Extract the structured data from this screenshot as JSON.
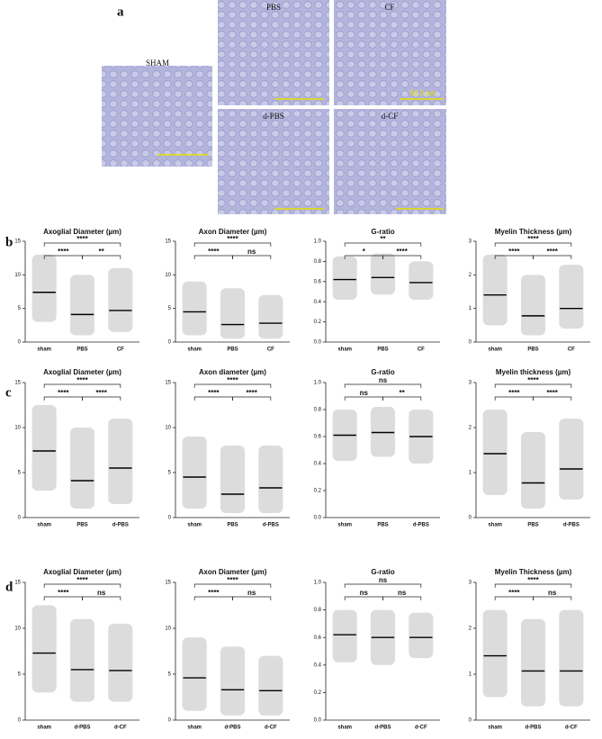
{
  "panel_labels": [
    "a",
    "b",
    "c",
    "d"
  ],
  "micrographs": {
    "images": [
      {
        "label": "SHAM"
      },
      {
        "label": "PBS"
      },
      {
        "label": "CF"
      },
      {
        "label": "d-PBS"
      },
      {
        "label": "d-CF"
      }
    ],
    "scale_bar": "60.0 µm"
  },
  "chart_data": [
    {
      "type": "dot",
      "title": "Axoglial Diameter (µm)",
      "categories": [
        "sham",
        "PBS",
        "CF"
      ],
      "means": [
        7.4,
        4.1,
        4.7
      ],
      "ranges": [
        [
          3,
          13
        ],
        [
          1,
          10
        ],
        [
          1.5,
          11
        ]
      ],
      "ylim": [
        0,
        15
      ],
      "yticks": [
        0,
        5,
        10,
        15
      ],
      "brackets": [
        {
          "between": [
            "sham",
            "PBS"
          ],
          "label": "****"
        },
        {
          "between": [
            "PBS",
            "CF"
          ],
          "label": "**"
        },
        {
          "between": [
            "sham",
            "CF"
          ],
          "label": "****"
        }
      ]
    },
    {
      "type": "dot",
      "title": "Axon Diameter (µm)",
      "categories": [
        "sham",
        "PBS",
        "CF"
      ],
      "means": [
        4.5,
        2.6,
        2.8
      ],
      "ranges": [
        [
          1,
          9
        ],
        [
          0.5,
          8
        ],
        [
          0.5,
          7
        ]
      ],
      "ylim": [
        0,
        15
      ],
      "yticks": [
        0,
        5,
        10,
        15
      ],
      "brackets": [
        {
          "between": [
            "sham",
            "PBS"
          ],
          "label": "****"
        },
        {
          "between": [
            "PBS",
            "CF"
          ],
          "label": "ns"
        },
        {
          "between": [
            "sham",
            "CF"
          ],
          "label": "****"
        }
      ]
    },
    {
      "type": "dot",
      "title": "G-ratio",
      "categories": [
        "sham",
        "PBS",
        "CF"
      ],
      "means": [
        0.62,
        0.64,
        0.59
      ],
      "ranges": [
        [
          0.42,
          0.85
        ],
        [
          0.47,
          0.88
        ],
        [
          0.42,
          0.8
        ]
      ],
      "ylim": [
        0,
        1
      ],
      "yticks": [
        {
          "value": 0,
          "label": "0.0"
        },
        {
          "value": 0.2,
          "label": "0.2"
        },
        {
          "value": 0.4,
          "label": "0.4"
        },
        {
          "value": 0.6,
          "label": "0.6"
        },
        {
          "value": 0.8,
          "label": "0.8"
        },
        {
          "value": 1,
          "label": "1.0"
        }
      ],
      "brackets": [
        {
          "between": [
            "sham",
            "PBS"
          ],
          "label": "*"
        },
        {
          "between": [
            "PBS",
            "CF"
          ],
          "label": "****"
        },
        {
          "between": [
            "sham",
            "CF"
          ],
          "label": "**"
        }
      ]
    },
    {
      "type": "dot",
      "title": "Myelin Thickness (µm)",
      "categories": [
        "sham",
        "PBS",
        "CF"
      ],
      "means": [
        1.4,
        0.78,
        1.0
      ],
      "ranges": [
        [
          0.5,
          2.6
        ],
        [
          0.2,
          2.0
        ],
        [
          0.4,
          2.3
        ]
      ],
      "ylim": [
        0,
        3
      ],
      "yticks": [
        0,
        1,
        2,
        3
      ],
      "brackets": [
        {
          "between": [
            "sham",
            "PBS"
          ],
          "label": "****"
        },
        {
          "between": [
            "PBS",
            "CF"
          ],
          "label": "****"
        },
        {
          "between": [
            "sham",
            "CF"
          ],
          "label": "****"
        }
      ]
    },
    {
      "type": "dot",
      "title": "Axoglial Diameter (µm)",
      "categories": [
        "sham",
        "PBS",
        "d-PBS"
      ],
      "means": [
        7.4,
        4.1,
        5.5
      ],
      "ranges": [
        [
          3,
          12.5
        ],
        [
          1,
          10
        ],
        [
          1.5,
          11
        ]
      ],
      "ylim": [
        0,
        15
      ],
      "yticks": [
        0,
        5,
        10,
        15
      ],
      "brackets": [
        {
          "between": [
            "sham",
            "PBS"
          ],
          "label": "****"
        },
        {
          "between": [
            "PBS",
            "d-PBS"
          ],
          "label": "****"
        },
        {
          "between": [
            "sham",
            "d-PBS"
          ],
          "label": "****"
        }
      ]
    },
    {
      "type": "dot",
      "title": "Axon diameter (µm)",
      "categories": [
        "sham",
        "PBS",
        "d-PBS"
      ],
      "means": [
        4.5,
        2.6,
        3.3
      ],
      "ranges": [
        [
          1,
          9
        ],
        [
          0.5,
          8
        ],
        [
          0.5,
          8
        ]
      ],
      "ylim": [
        0,
        15
      ],
      "yticks": [
        0,
        5,
        10,
        15
      ],
      "brackets": [
        {
          "between": [
            "sham",
            "PBS"
          ],
          "label": "****"
        },
        {
          "between": [
            "PBS",
            "d-PBS"
          ],
          "label": "****"
        },
        {
          "between": [
            "sham",
            "d-PBS"
          ],
          "label": "****"
        }
      ]
    },
    {
      "type": "dot",
      "title": "G-ratio",
      "categories": [
        "sham",
        "PBS",
        "d-PBS"
      ],
      "means": [
        0.61,
        0.63,
        0.6
      ],
      "ranges": [
        [
          0.42,
          0.8
        ],
        [
          0.45,
          0.82
        ],
        [
          0.4,
          0.8
        ]
      ],
      "ylim": [
        0,
        1
      ],
      "yticks": [
        {
          "value": 0,
          "label": "0.0"
        },
        {
          "value": 0.2,
          "label": "0.2"
        },
        {
          "value": 0.4,
          "label": "0.4"
        },
        {
          "value": 0.6,
          "label": "0.6"
        },
        {
          "value": 0.8,
          "label": "0.8"
        },
        {
          "value": 1,
          "label": "1.0"
        }
      ],
      "brackets": [
        {
          "between": [
            "sham",
            "PBS"
          ],
          "label": "ns"
        },
        {
          "between": [
            "PBS",
            "d-PBS"
          ],
          "label": "**"
        },
        {
          "between": [
            "sham",
            "d-PBS"
          ],
          "label": "ns"
        }
      ]
    },
    {
      "type": "dot",
      "title": "Myelin thickness (µm)",
      "categories": [
        "sham",
        "PBS",
        "d-PBS"
      ],
      "means": [
        1.42,
        0.77,
        1.08
      ],
      "ranges": [
        [
          0.5,
          2.4
        ],
        [
          0.2,
          1.9
        ],
        [
          0.4,
          2.2
        ]
      ],
      "ylim": [
        0,
        3
      ],
      "yticks": [
        0,
        1,
        2,
        3
      ],
      "brackets": [
        {
          "between": [
            "sham",
            "PBS"
          ],
          "label": "****"
        },
        {
          "between": [
            "PBS",
            "d-PBS"
          ],
          "label": "****"
        },
        {
          "between": [
            "sham",
            "d-PBS"
          ],
          "label": "****"
        }
      ]
    },
    {
      "type": "dot",
      "title": "Axoglial Diameter (µm)",
      "categories": [
        "sham",
        "d-PBS",
        "d-CF"
      ],
      "means": [
        7.3,
        5.5,
        5.4
      ],
      "ranges": [
        [
          3,
          12.5
        ],
        [
          2,
          11
        ],
        [
          2,
          10.5
        ]
      ],
      "ylim": [
        0,
        15
      ],
      "yticks": [
        0,
        5,
        10,
        15
      ],
      "brackets": [
        {
          "between": [
            "sham",
            "d-PBS"
          ],
          "label": "****"
        },
        {
          "between": [
            "d-PBS",
            "d-CF"
          ],
          "label": "ns"
        },
        {
          "between": [
            "sham",
            "d-CF"
          ],
          "label": "****"
        }
      ]
    },
    {
      "type": "dot",
      "title": "Axon Diameter (µm)",
      "categories": [
        "sham",
        "d-PBS",
        "d-CF"
      ],
      "means": [
        4.6,
        3.3,
        3.2
      ],
      "ranges": [
        [
          1,
          9
        ],
        [
          0.5,
          8
        ],
        [
          0.5,
          7
        ]
      ],
      "ylim": [
        0,
        15
      ],
      "yticks": [
        0,
        5,
        10,
        15
      ],
      "brackets": [
        {
          "between": [
            "sham",
            "d-PBS"
          ],
          "label": "****"
        },
        {
          "between": [
            "d-PBS",
            "d-CF"
          ],
          "label": "ns"
        },
        {
          "between": [
            "sham",
            "d-CF"
          ],
          "label": "****"
        }
      ]
    },
    {
      "type": "dot",
      "title": "G-ratio",
      "categories": [
        "sham",
        "d-PBS",
        "d-CF"
      ],
      "means": [
        0.62,
        0.6,
        0.6
      ],
      "ranges": [
        [
          0.42,
          0.8
        ],
        [
          0.4,
          0.8
        ],
        [
          0.45,
          0.78
        ]
      ],
      "ylim": [
        0,
        1
      ],
      "yticks": [
        {
          "value": 0,
          "label": "0.0"
        },
        {
          "value": 0.2,
          "label": "0.2"
        },
        {
          "value": 0.4,
          "label": "0.4"
        },
        {
          "value": 0.6,
          "label": "0.6"
        },
        {
          "value": 0.8,
          "label": "0.8"
        },
        {
          "value": 1,
          "label": "1.0"
        }
      ],
      "brackets": [
        {
          "between": [
            "sham",
            "d-PBS"
          ],
          "label": "ns"
        },
        {
          "between": [
            "d-PBS",
            "d-CF"
          ],
          "label": "ns"
        },
        {
          "between": [
            "sham",
            "d-CF"
          ],
          "label": "ns"
        }
      ]
    },
    {
      "type": "dot",
      "title": "Myelin Thickness (µm)",
      "categories": [
        "sham",
        "d-PBS",
        "d-CF"
      ],
      "means": [
        1.4,
        1.07,
        1.07
      ],
      "ranges": [
        [
          0.5,
          2.4
        ],
        [
          0.3,
          2.2
        ],
        [
          0.3,
          2.4
        ]
      ],
      "ylim": [
        0,
        3
      ],
      "yticks": [
        0,
        1,
        2,
        3
      ],
      "brackets": [
        {
          "between": [
            "sham",
            "d-PBS"
          ],
          "label": "****"
        },
        {
          "between": [
            "d-PBS",
            "d-CF"
          ],
          "label": "ns"
        },
        {
          "between": [
            "sham",
            "d-CF"
          ],
          "label": "****"
        }
      ]
    }
  ]
}
